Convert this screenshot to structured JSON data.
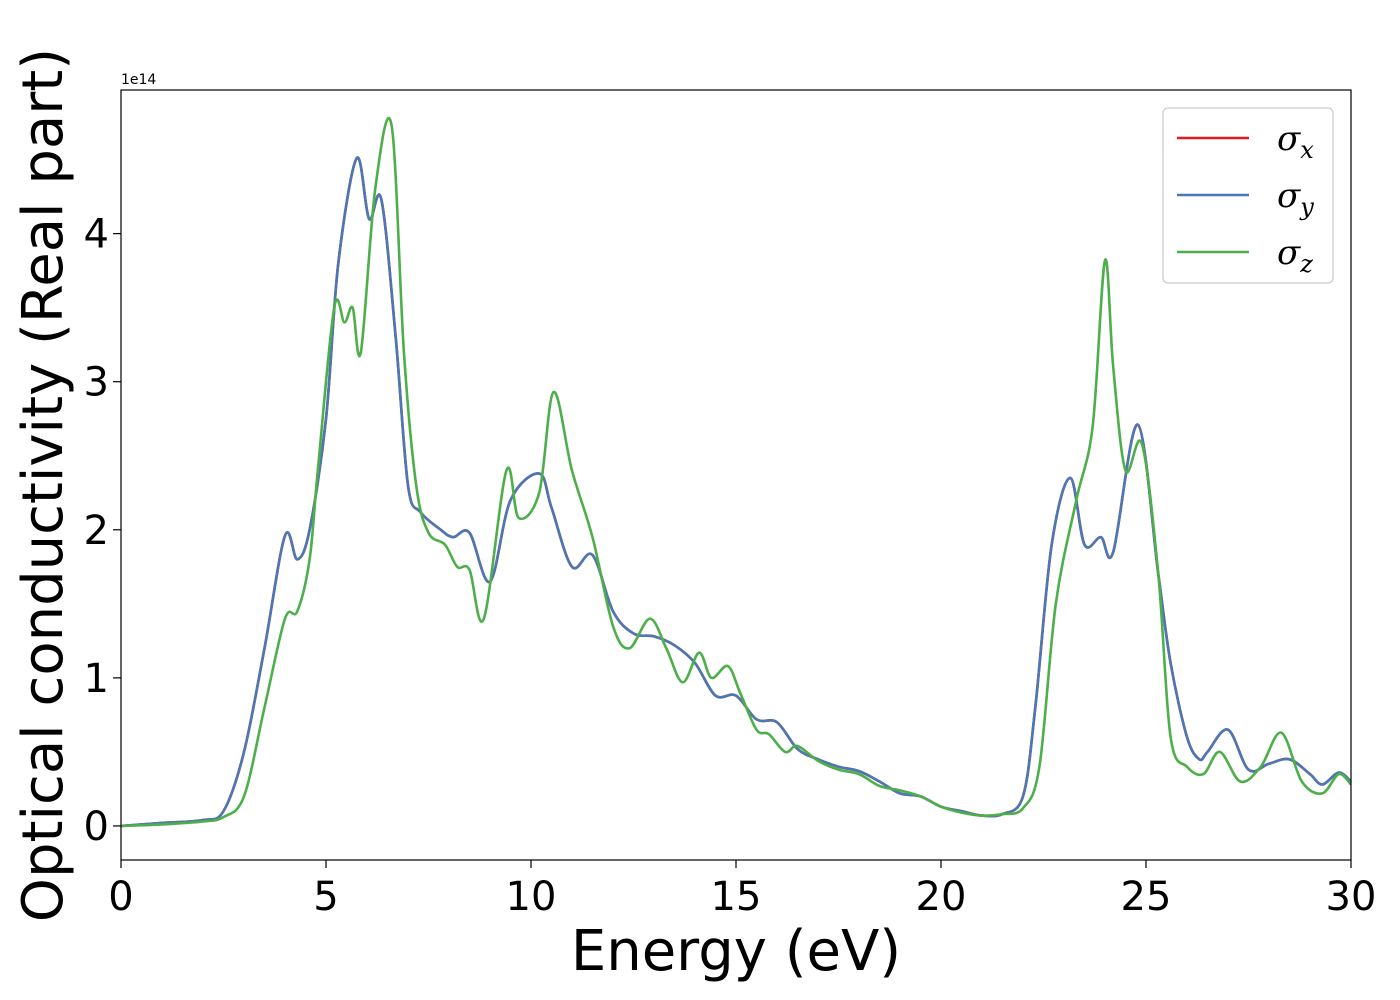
{
  "chart_data": {
    "type": "line",
    "title": "",
    "xlabel": "Energy (eV)",
    "ylabel": "Optical conductivity (Real part)",
    "y_multiplier_label": "1e14",
    "xlim": [
      0,
      30
    ],
    "ylim": [
      -0.23,
      4.97
    ],
    "x_ticks": [
      0,
      5,
      10,
      15,
      20,
      25,
      30
    ],
    "y_ticks": [
      0,
      1,
      2,
      3,
      4
    ],
    "grid": false,
    "legend_position": "top-right",
    "series": [
      {
        "name": "σx",
        "name_base": "σ",
        "name_sub": "x",
        "color": "#e41a1c",
        "x": [
          0,
          1,
          2,
          2.5,
          3,
          3.5,
          4,
          4.3,
          4.6,
          5,
          5.3,
          5.75,
          6.05,
          6.35,
          6.7,
          7,
          7.3,
          7.8,
          8.1,
          8.5,
          9,
          9.5,
          10.2,
          10.5,
          11,
          11.5,
          12,
          12.5,
          13,
          13.5,
          14,
          14.5,
          15,
          15.5,
          16,
          16.5,
          17,
          17.5,
          18,
          18.5,
          19,
          19.5,
          20,
          20.5,
          21,
          21.5,
          22,
          22.3,
          22.7,
          23.15,
          23.5,
          23.9,
          24.2,
          24.8,
          25.3,
          25.6,
          26,
          26.3,
          26.5,
          27,
          27.5,
          28,
          28.5,
          29,
          29.3,
          29.7,
          30
        ],
        "y": [
          0,
          0.02,
          0.04,
          0.1,
          0.5,
          1.2,
          1.96,
          1.8,
          2.0,
          2.75,
          3.8,
          4.51,
          4.1,
          4.23,
          3.3,
          2.3,
          2.12,
          2.0,
          1.95,
          1.98,
          1.65,
          2.2,
          2.38,
          2.15,
          1.75,
          1.83,
          1.45,
          1.3,
          1.28,
          1.22,
          1.1,
          0.88,
          0.88,
          0.72,
          0.7,
          0.52,
          0.45,
          0.4,
          0.37,
          0.3,
          0.22,
          0.2,
          0.13,
          0.1,
          0.07,
          0.08,
          0.2,
          0.8,
          1.9,
          2.35,
          1.9,
          1.95,
          1.85,
          2.71,
          1.7,
          1.1,
          0.6,
          0.45,
          0.5,
          0.65,
          0.38,
          0.42,
          0.45,
          0.35,
          0.28,
          0.36,
          0.3
        ]
      },
      {
        "name": "σy",
        "name_base": "σ",
        "name_sub": "y",
        "color": "#4a78b4",
        "x": [
          0,
          1,
          2,
          2.5,
          3,
          3.5,
          4,
          4.3,
          4.6,
          5,
          5.3,
          5.75,
          6.05,
          6.35,
          6.7,
          7,
          7.3,
          7.8,
          8.1,
          8.5,
          9,
          9.5,
          10.2,
          10.5,
          11,
          11.5,
          12,
          12.5,
          13,
          13.5,
          14,
          14.5,
          15,
          15.5,
          16,
          16.5,
          17,
          17.5,
          18,
          18.5,
          19,
          19.5,
          20,
          20.5,
          21,
          21.5,
          22,
          22.3,
          22.7,
          23.15,
          23.5,
          23.9,
          24.2,
          24.8,
          25.3,
          25.6,
          26,
          26.3,
          26.5,
          27,
          27.5,
          28,
          28.5,
          29,
          29.3,
          29.7,
          30
        ],
        "y": [
          0,
          0.02,
          0.04,
          0.1,
          0.5,
          1.2,
          1.96,
          1.8,
          2.0,
          2.75,
          3.8,
          4.51,
          4.1,
          4.23,
          3.3,
          2.3,
          2.12,
          2.0,
          1.95,
          1.98,
          1.65,
          2.2,
          2.38,
          2.15,
          1.75,
          1.83,
          1.45,
          1.3,
          1.28,
          1.22,
          1.1,
          0.88,
          0.88,
          0.72,
          0.7,
          0.52,
          0.45,
          0.4,
          0.37,
          0.3,
          0.22,
          0.2,
          0.13,
          0.1,
          0.07,
          0.08,
          0.2,
          0.8,
          1.9,
          2.35,
          1.9,
          1.95,
          1.85,
          2.71,
          1.7,
          1.1,
          0.6,
          0.45,
          0.5,
          0.65,
          0.38,
          0.42,
          0.45,
          0.35,
          0.28,
          0.36,
          0.3
        ]
      },
      {
        "name": "σz",
        "name_base": "σ",
        "name_sub": "z",
        "color": "#4daf4a",
        "x": [
          0,
          1,
          2,
          2.5,
          3,
          3.5,
          4,
          4.3,
          4.6,
          4.8,
          5.2,
          5.45,
          5.65,
          5.85,
          6.2,
          6.6,
          6.9,
          7.2,
          7.5,
          7.9,
          8.2,
          8.5,
          8.85,
          9.4,
          9.7,
          10.2,
          10.55,
          11,
          11.5,
          12,
          12.4,
          12.9,
          13.3,
          13.7,
          14.1,
          14.4,
          14.8,
          15.1,
          15.5,
          15.8,
          16.2,
          16.5,
          17,
          17.5,
          18,
          18.5,
          19,
          19.5,
          20,
          20.5,
          21,
          21.5,
          22,
          22.4,
          22.8,
          23.3,
          23.7,
          24,
          24.2,
          24.5,
          24.9,
          25.3,
          25.6,
          26,
          26.4,
          26.8,
          27.3,
          27.8,
          28.3,
          28.8,
          29.3,
          29.7,
          30
        ],
        "y": [
          0,
          0.01,
          0.03,
          0.06,
          0.2,
          0.8,
          1.4,
          1.45,
          1.8,
          2.4,
          3.5,
          3.4,
          3.5,
          3.2,
          4.3,
          4.73,
          3.2,
          2.3,
          1.98,
          1.9,
          1.75,
          1.73,
          1.4,
          2.4,
          2.08,
          2.25,
          2.93,
          2.4,
          1.95,
          1.35,
          1.2,
          1.4,
          1.2,
          0.97,
          1.17,
          1.0,
          1.08,
          0.9,
          0.65,
          0.62,
          0.5,
          0.54,
          0.44,
          0.38,
          0.35,
          0.27,
          0.24,
          0.2,
          0.13,
          0.09,
          0.07,
          0.08,
          0.12,
          0.4,
          1.5,
          2.2,
          2.7,
          3.82,
          3.1,
          2.4,
          2.58,
          1.7,
          0.6,
          0.4,
          0.35,
          0.5,
          0.3,
          0.4,
          0.63,
          0.3,
          0.22,
          0.35,
          0.28
        ]
      }
    ]
  }
}
